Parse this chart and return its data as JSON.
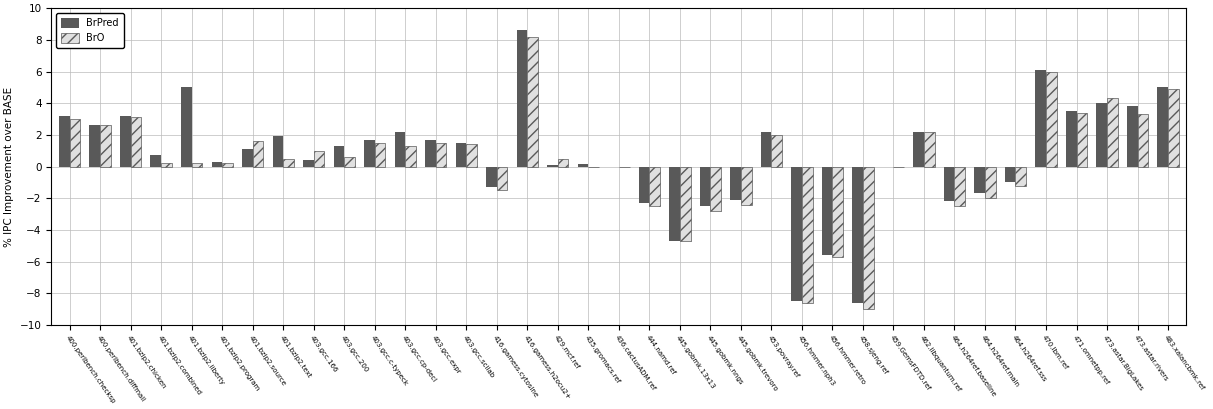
{
  "categories": [
    "400.perlbench.checksp",
    "400.perlbench.diffmail",
    "401.bzip2.chicken",
    "401.bzip2.combined",
    "401.bzip2.liberty",
    "401.bzip2.program",
    "401.bzip2.source",
    "401.bzip2.text",
    "403.gcc.166",
    "403.gcc.200",
    "403.gcc.c-typeck",
    "403.gcc.cp-decl",
    "403.gcc.expr",
    "403.gcc.scilab",
    "416.gamess.cytosine",
    "416.gamess.h2ocu2+",
    "429.mcf.ref",
    "435.gromacs.ref",
    "436.cactusADM.ref",
    "444.namd.ref",
    "445.gobmk.13x13",
    "445.gobmk.nngs",
    "445.gobmk.trevoro",
    "453.povray.ref",
    "456.hmmer.nph3",
    "456.hmmer.retro",
    "458.sjeng.ref",
    "459.GemsFDTD.ref",
    "462.libquantum.ref",
    "464.h264ref.baseline",
    "464.h264ref.main",
    "464.h264ref.sss",
    "470.lbm.ref",
    "471.omnetpp.ref",
    "473.astar.BigLakes",
    "473.astar.rivers",
    "483.xalancbmk.ref"
  ],
  "brpred": [
    3.2,
    2.6,
    3.2,
    0.7,
    5.0,
    0.3,
    1.1,
    1.9,
    0.4,
    1.3,
    1.7,
    2.2,
    1.7,
    1.5,
    -1.3,
    8.6,
    0.1,
    0.15,
    0.0,
    -2.3,
    -4.7,
    -2.5,
    -2.1,
    2.2,
    -8.5,
    -5.6,
    -8.6,
    0.0,
    2.2,
    -2.2,
    -1.7,
    -1.0,
    6.1,
    3.5,
    4.0,
    3.8,
    5.0
  ],
  "bro": [
    3.0,
    2.6,
    3.1,
    0.2,
    0.2,
    0.2,
    1.6,
    0.5,
    1.0,
    0.6,
    1.5,
    1.3,
    1.5,
    1.4,
    -1.5,
    8.2,
    0.5,
    0.0,
    0.0,
    -2.5,
    -4.7,
    -2.8,
    -2.4,
    2.0,
    -8.6,
    -5.7,
    -9.0,
    0.0,
    2.2,
    -2.5,
    -2.0,
    -1.2,
    6.0,
    3.4,
    4.3,
    3.3,
    4.9
  ],
  "brpred_color": "#595959",
  "bro_hatch": "///",
  "bro_facecolor": "#e0e0e0",
  "bro_edgecolor": "#595959",
  "ylabel": "% IPC Improvement over BASE",
  "ylim": [
    -10,
    10
  ],
  "yticks": [
    -10,
    -8,
    -6,
    -4,
    -2,
    0,
    2,
    4,
    6,
    8,
    10
  ],
  "background_color": "#ffffff",
  "grid_color": "#bbbbbb",
  "legend_labels": [
    "BrPred",
    "BrO"
  ],
  "bar_width": 0.35,
  "label_fontsize": 5.0,
  "ylabel_fontsize": 7.5,
  "ytick_fontsize": 7.5
}
